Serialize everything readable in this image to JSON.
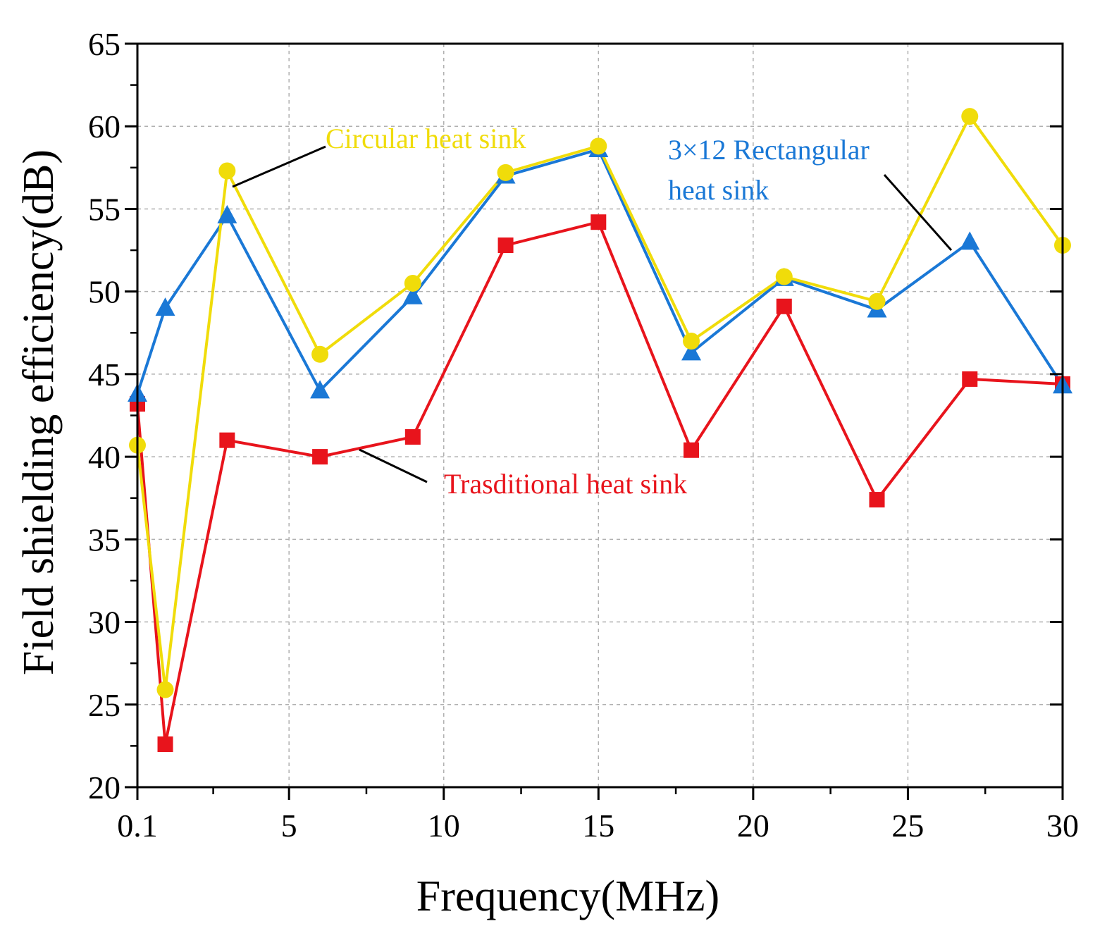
{
  "chart_data": {
    "type": "line",
    "title": "",
    "xlabel": "Frequency(MHz)",
    "ylabel": "Field shielding efficiency(dB)",
    "xlim": [
      0.1,
      30
    ],
    "ylim": [
      20,
      65
    ],
    "grid": true,
    "x_ticks": [
      0.1,
      5,
      10,
      15,
      20,
      25,
      30
    ],
    "x_tick_labels": [
      "0.1",
      "5",
      "10",
      "15",
      "20",
      "25",
      "30"
    ],
    "y_ticks": [
      20,
      25,
      30,
      35,
      40,
      45,
      50,
      55,
      60,
      65
    ],
    "y_tick_labels": [
      "20",
      "25",
      "30",
      "35",
      "40",
      "45",
      "50",
      "55",
      "60",
      "65"
    ],
    "x": [
      0.1,
      1,
      3,
      6,
      9,
      12,
      15,
      18,
      21,
      24,
      27,
      30
    ],
    "series": [
      {
        "name": "Trasditional heat sink",
        "color": "#e8141c",
        "marker": "square",
        "values": [
          43.2,
          22.6,
          41.0,
          40.0,
          41.2,
          52.8,
          54.2,
          40.4,
          49.1,
          37.4,
          44.7,
          44.4
        ]
      },
      {
        "name": "3×12 Rectangular heat sink",
        "color": "#1a78d6",
        "marker": "triangle",
        "values": [
          43.8,
          49.0,
          54.6,
          44.0,
          49.7,
          57.0,
          58.6,
          46.3,
          50.8,
          48.9,
          53.0,
          44.3
        ]
      },
      {
        "name": "Circular heat sink",
        "color": "#f0dc0a",
        "marker": "circle",
        "values": [
          40.7,
          25.9,
          57.3,
          46.2,
          50.5,
          57.2,
          58.8,
          47.0,
          50.9,
          49.4,
          60.6,
          52.8
        ]
      }
    ],
    "annotations": [
      {
        "text": "Circular heat sink",
        "color": "#f0dc0a",
        "series": 2
      },
      {
        "text": "3×12 Rectangular",
        "text2": "heat sink",
        "color": "#1a78d6",
        "series": 1
      },
      {
        "text": "Trasditional heat sink",
        "color": "#e8141c",
        "series": 0
      }
    ]
  }
}
